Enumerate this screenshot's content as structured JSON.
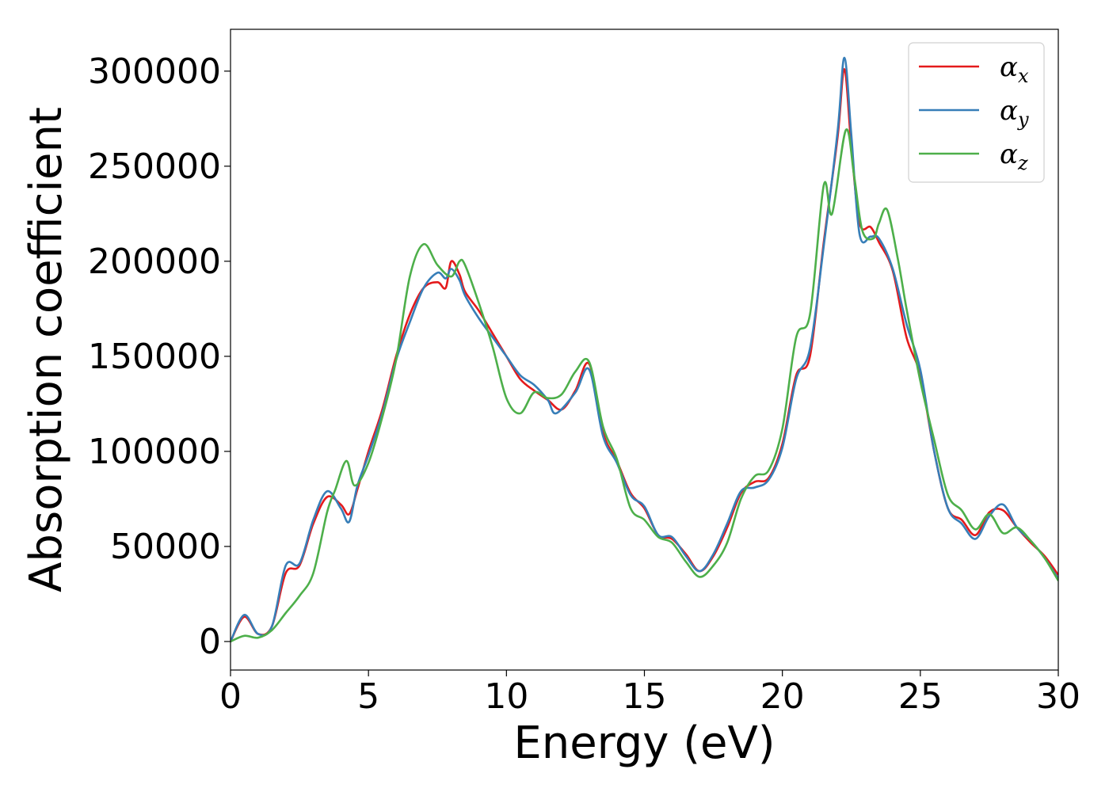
{
  "chart_data": {
    "type": "line",
    "title": "",
    "xlabel": "Energy (eV)",
    "ylabel": "Absorption coefficient",
    "xlim": [
      0,
      30
    ],
    "ylim": [
      -15000,
      322000
    ],
    "xticks": [
      0,
      5,
      10,
      15,
      20,
      25,
      30
    ],
    "yticks": [
      0,
      50000,
      100000,
      150000,
      200000,
      250000,
      300000
    ],
    "grid": false,
    "legend_position": "top-right",
    "series": [
      {
        "name": "αx",
        "symbol": "α",
        "subscript": "x",
        "color": "#e41a1c",
        "points": [
          [
            0,
            0
          ],
          [
            0.5,
            13000
          ],
          [
            1,
            4000
          ],
          [
            1.5,
            8000
          ],
          [
            2,
            36000
          ],
          [
            2.5,
            40000
          ],
          [
            3,
            62000
          ],
          [
            3.5,
            76000
          ],
          [
            4,
            72000
          ],
          [
            4.3,
            67000
          ],
          [
            4.6,
            80000
          ],
          [
            5,
            100000
          ],
          [
            5.5,
            122000
          ],
          [
            6,
            150000
          ],
          [
            6.5,
            172000
          ],
          [
            7,
            186000
          ],
          [
            7.5,
            189000
          ],
          [
            7.8,
            186000
          ],
          [
            8,
            200000
          ],
          [
            8.3,
            193000
          ],
          [
            8.5,
            184000
          ],
          [
            9,
            174000
          ],
          [
            9.5,
            162000
          ],
          [
            10,
            150000
          ],
          [
            10.5,
            138000
          ],
          [
            11,
            132000
          ],
          [
            11.5,
            127000
          ],
          [
            12,
            122000
          ],
          [
            12.5,
            132000
          ],
          [
            13,
            146000
          ],
          [
            13.5,
            110000
          ],
          [
            14,
            95000
          ],
          [
            14.5,
            78000
          ],
          [
            15,
            70000
          ],
          [
            15.5,
            56000
          ],
          [
            16,
            54000
          ],
          [
            16.5,
            46000
          ],
          [
            17,
            37000
          ],
          [
            17.5,
            45000
          ],
          [
            18,
            60000
          ],
          [
            18.5,
            78000
          ],
          [
            19,
            84000
          ],
          [
            19.5,
            86000
          ],
          [
            20,
            104000
          ],
          [
            20.5,
            140000
          ],
          [
            21,
            150000
          ],
          [
            21.5,
            210000
          ],
          [
            22,
            265000
          ],
          [
            22.25,
            301000
          ],
          [
            22.5,
            260000
          ],
          [
            22.8,
            220000
          ],
          [
            23.2,
            218000
          ],
          [
            23.5,
            210000
          ],
          [
            24,
            195000
          ],
          [
            24.5,
            160000
          ],
          [
            25,
            140000
          ],
          [
            25.5,
            100000
          ],
          [
            26,
            70000
          ],
          [
            26.5,
            64000
          ],
          [
            27,
            56000
          ],
          [
            27.5,
            68000
          ],
          [
            28,
            69000
          ],
          [
            28.5,
            60000
          ],
          [
            29,
            52000
          ],
          [
            29.5,
            45000
          ],
          [
            30,
            35000
          ]
        ]
      },
      {
        "name": "αy",
        "symbol": "α",
        "subscript": "y",
        "color": "#377eb8",
        "points": [
          [
            0,
            0
          ],
          [
            0.5,
            14000
          ],
          [
            1,
            4000
          ],
          [
            1.5,
            8000
          ],
          [
            2,
            40000
          ],
          [
            2.5,
            41000
          ],
          [
            3,
            64000
          ],
          [
            3.5,
            79000
          ],
          [
            4,
            70000
          ],
          [
            4.3,
            63000
          ],
          [
            4.6,
            82000
          ],
          [
            5,
            98000
          ],
          [
            5.5,
            120000
          ],
          [
            6,
            148000
          ],
          [
            6.5,
            168000
          ],
          [
            7,
            186000
          ],
          [
            7.5,
            194000
          ],
          [
            7.8,
            191000
          ],
          [
            8,
            196000
          ],
          [
            8.3,
            190000
          ],
          [
            8.5,
            182000
          ],
          [
            9,
            170000
          ],
          [
            9.5,
            160000
          ],
          [
            10,
            150000
          ],
          [
            10.5,
            140000
          ],
          [
            11,
            135000
          ],
          [
            11.5,
            127000
          ],
          [
            11.8,
            120000
          ],
          [
            12.5,
            131000
          ],
          [
            13,
            143000
          ],
          [
            13.5,
            108000
          ],
          [
            14,
            94000
          ],
          [
            14.5,
            77000
          ],
          [
            15,
            71000
          ],
          [
            15.5,
            56000
          ],
          [
            16,
            55000
          ],
          [
            16.5,
            45000
          ],
          [
            17,
            37000
          ],
          [
            17.5,
            46000
          ],
          [
            18,
            62000
          ],
          [
            18.5,
            79000
          ],
          [
            19,
            81000
          ],
          [
            19.5,
            85000
          ],
          [
            20,
            102000
          ],
          [
            20.5,
            138000
          ],
          [
            21,
            154000
          ],
          [
            21.5,
            208000
          ],
          [
            22,
            268000
          ],
          [
            22.25,
            307000
          ],
          [
            22.5,
            266000
          ],
          [
            22.8,
            214000
          ],
          [
            23.2,
            213000
          ],
          [
            23.5,
            212000
          ],
          [
            24,
            196000
          ],
          [
            24.5,
            167000
          ],
          [
            25,
            143000
          ],
          [
            25.5,
            100000
          ],
          [
            26,
            70000
          ],
          [
            26.5,
            62000
          ],
          [
            27,
            54000
          ],
          [
            27.5,
            66000
          ],
          [
            28,
            72000
          ],
          [
            28.5,
            60000
          ],
          [
            29,
            53000
          ],
          [
            29.5,
            44000
          ],
          [
            30,
            33000
          ]
        ]
      },
      {
        "name": "αz",
        "symbol": "α",
        "subscript": "z",
        "color": "#4daf4a",
        "points": [
          [
            0,
            0
          ],
          [
            0.5,
            3000
          ],
          [
            1,
            2000
          ],
          [
            1.5,
            6000
          ],
          [
            2,
            15000
          ],
          [
            2.5,
            24000
          ],
          [
            3,
            36000
          ],
          [
            3.5,
            68000
          ],
          [
            3.8,
            80000
          ],
          [
            4.2,
            95000
          ],
          [
            4.5,
            82000
          ],
          [
            5,
            94000
          ],
          [
            5.5,
            118000
          ],
          [
            6,
            148000
          ],
          [
            6.5,
            192000
          ],
          [
            7,
            209000
          ],
          [
            7.5,
            198000
          ],
          [
            8,
            192000
          ],
          [
            8.3,
            200000
          ],
          [
            8.5,
            198000
          ],
          [
            9,
            178000
          ],
          [
            9.5,
            155000
          ],
          [
            10,
            128000
          ],
          [
            10.5,
            120000
          ],
          [
            11,
            131000
          ],
          [
            11.5,
            128000
          ],
          [
            12,
            130000
          ],
          [
            12.5,
            142000
          ],
          [
            13,
            147000
          ],
          [
            13.5,
            113000
          ],
          [
            14,
            96000
          ],
          [
            14.5,
            70000
          ],
          [
            15,
            64000
          ],
          [
            15.5,
            55000
          ],
          [
            16,
            52000
          ],
          [
            16.5,
            42000
          ],
          [
            17,
            34000
          ],
          [
            17.5,
            40000
          ],
          [
            18,
            52000
          ],
          [
            18.5,
            75000
          ],
          [
            19,
            87000
          ],
          [
            19.5,
            90000
          ],
          [
            20,
            112000
          ],
          [
            20.5,
            160000
          ],
          [
            21,
            172000
          ],
          [
            21.5,
            240000
          ],
          [
            21.8,
            225000
          ],
          [
            22.3,
            269000
          ],
          [
            22.6,
            245000
          ],
          [
            22.9,
            216000
          ],
          [
            23.3,
            212000
          ],
          [
            23.5,
            220000
          ],
          [
            23.8,
            227000
          ],
          [
            24.2,
            200000
          ],
          [
            24.5,
            175000
          ],
          [
            25,
            137000
          ],
          [
            25.5,
            106000
          ],
          [
            26,
            77000
          ],
          [
            26.5,
            69000
          ],
          [
            27,
            59000
          ],
          [
            27.5,
            67000
          ],
          [
            28,
            57000
          ],
          [
            28.5,
            60000
          ],
          [
            29,
            53000
          ],
          [
            29.5,
            44000
          ],
          [
            30,
            32000
          ]
        ]
      }
    ]
  }
}
